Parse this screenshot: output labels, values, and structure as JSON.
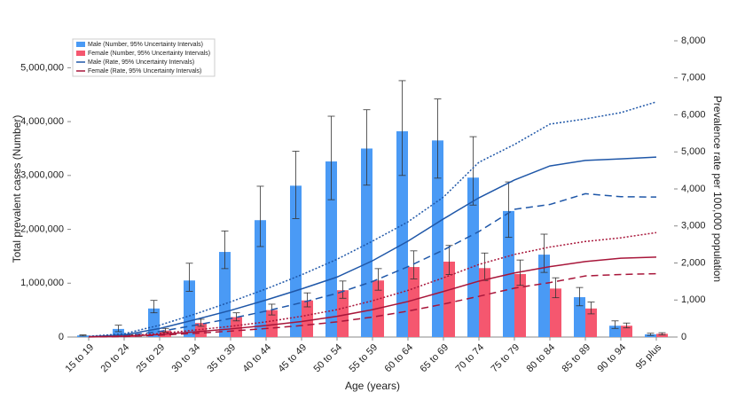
{
  "chart_data": {
    "type": "bar-line",
    "x_label": "Age (years)",
    "y_label": "Total prevalent cases (Number)",
    "y2_label": "Prevalence rate per 100,000 population",
    "categories": [
      "15 to 19",
      "20 to 24",
      "25 to 29",
      "30 to 34",
      "35 to 39",
      "40 to 44",
      "45 to 49",
      "50 to 54",
      "55 to 59",
      "60 to 64",
      "65 to 69",
      "70 to 74",
      "75 to 79",
      "80 to 84",
      "85 to 89",
      "90 to 94",
      "95 plus"
    ],
    "ylim": [
      0,
      5500000
    ],
    "yticks": [
      0,
      {
        "value": 1000000,
        "label": "1,000,000"
      },
      {
        "value": 2000000,
        "label": "2,000,000"
      },
      {
        "value": 3000000,
        "label": "3,000,000"
      },
      {
        "value": 4000000,
        "label": "4,000,000"
      },
      {
        "value": 5000000,
        "label": "5,000,000"
      }
    ],
    "y2lim": [
      0,
      8000
    ],
    "y2ticks": [
      0,
      {
        "value": 1000,
        "label": "1,000"
      },
      {
        "value": 2000,
        "label": "2,000"
      },
      {
        "value": 3000,
        "label": "3,000"
      },
      {
        "value": 4000,
        "label": "4,000"
      },
      {
        "value": 5000,
        "label": "5,000"
      },
      {
        "value": 6000,
        "label": "6,000"
      },
      {
        "value": 7000,
        "label": "7,000"
      },
      {
        "value": 8000,
        "label": "8,000"
      }
    ],
    "legend": "top-left",
    "series": [
      {
        "name": "Male (Number, 95% Uncertainty Intervals)",
        "kind": "bar",
        "color": "#4a9af5",
        "values": [
          30000,
          150000,
          530000,
          1050000,
          1580000,
          2170000,
          2810000,
          3260000,
          3500000,
          3820000,
          3650000,
          2960000,
          2340000,
          1530000,
          740000,
          210000,
          50000
        ],
        "lower": [
          20000,
          100000,
          450000,
          850000,
          1270000,
          1680000,
          2200000,
          2550000,
          2820000,
          3000000,
          2950000,
          2450000,
          1850000,
          1200000,
          580000,
          160000,
          30000
        ],
        "upper": [
          40000,
          220000,
          680000,
          1370000,
          1970000,
          2800000,
          3450000,
          4100000,
          4220000,
          4760000,
          4420000,
          3720000,
          2880000,
          1910000,
          920000,
          300000,
          70000
        ]
      },
      {
        "name": "Female (Number, 95% Uncertainty Intervals)",
        "kind": "bar",
        "color": "#f5576f",
        "values": [
          10000,
          30000,
          120000,
          260000,
          370000,
          500000,
          680000,
          870000,
          1050000,
          1300000,
          1400000,
          1280000,
          1170000,
          900000,
          530000,
          210000,
          60000
        ],
        "lower": [
          5000,
          20000,
          90000,
          200000,
          300000,
          410000,
          560000,
          720000,
          870000,
          1080000,
          1160000,
          1050000,
          960000,
          730000,
          430000,
          170000,
          40000
        ],
        "upper": [
          15000,
          45000,
          160000,
          330000,
          450000,
          610000,
          820000,
          1040000,
          1270000,
          1600000,
          1700000,
          1560000,
          1430000,
          1100000,
          650000,
          260000,
          80000
        ]
      },
      {
        "name": "Male (Rate, 95% Uncertainty Intervals)",
        "kind": "line",
        "axis": "y2",
        "color": "#1f57a8",
        "values": [
          10,
          60,
          230,
          470,
          720,
          1000,
          1300,
          1620,
          2060,
          2590,
          3190,
          3760,
          4240,
          4620,
          4770,
          4810,
          4860
        ],
        "lower": [
          5,
          35,
          150,
          320,
          500,
          700,
          930,
          1180,
          1500,
          1900,
          2350,
          2850,
          3450,
          3580,
          3870,
          3790,
          3780
        ],
        "upper": [
          20,
          90,
          320,
          620,
          950,
          1300,
          1680,
          2100,
          2590,
          3110,
          3780,
          4720,
          5200,
          5750,
          5890,
          6060,
          6350
        ]
      },
      {
        "name": "Female (Rate, 95% Uncertainty Intervals)",
        "kind": "line",
        "axis": "y2",
        "color": "#a8163a",
        "values": [
          5,
          20,
          70,
          140,
          220,
          310,
          420,
          560,
          740,
          960,
          1230,
          1510,
          1730,
          1900,
          2040,
          2130,
          2160
        ],
        "lower": [
          3,
          13,
          50,
          100,
          160,
          230,
          310,
          410,
          540,
          700,
          890,
          1100,
          1320,
          1470,
          1650,
          1690,
          1710
        ],
        "upper": [
          8,
          30,
          95,
          190,
          290,
          410,
          560,
          740,
          980,
          1260,
          1600,
          1960,
          2230,
          2430,
          2580,
          2680,
          2820
        ]
      }
    ]
  }
}
